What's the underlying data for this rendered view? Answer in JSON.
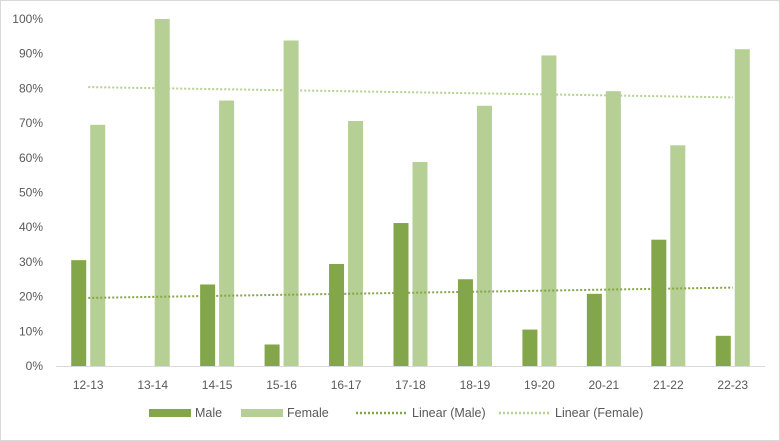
{
  "chart_data": {
    "type": "bar",
    "categories": [
      "12-13",
      "13-14",
      "14-15",
      "15-16",
      "16-17",
      "17-18",
      "18-19",
      "19-20",
      "20-21",
      "21-22",
      "22-23"
    ],
    "series": [
      {
        "name": "Male",
        "color": "#84a64a",
        "values": [
          30.5,
          0,
          23.5,
          6.2,
          29.4,
          41.2,
          25,
          10.5,
          20.8,
          36.4,
          8.7
        ]
      },
      {
        "name": "Female",
        "color": "#b6cf94",
        "values": [
          69.5,
          100,
          76.5,
          93.8,
          70.6,
          58.8,
          75,
          89.5,
          79.2,
          63.6,
          91.3
        ]
      }
    ],
    "trendlines": [
      {
        "name": "Linear (Male)",
        "series": "Male",
        "type": "linear",
        "color": "#84a64a"
      },
      {
        "name": "Linear (Female)",
        "series": "Female",
        "type": "linear",
        "color": "#b6cf94"
      }
    ],
    "y_ticks": [
      "0%",
      "10%",
      "20%",
      "30%",
      "40%",
      "50%",
      "60%",
      "70%",
      "80%",
      "90%",
      "100%"
    ],
    "ylim": [
      0,
      100
    ],
    "ytick_step": 10,
    "grid": false,
    "legend_position": "bottom"
  }
}
